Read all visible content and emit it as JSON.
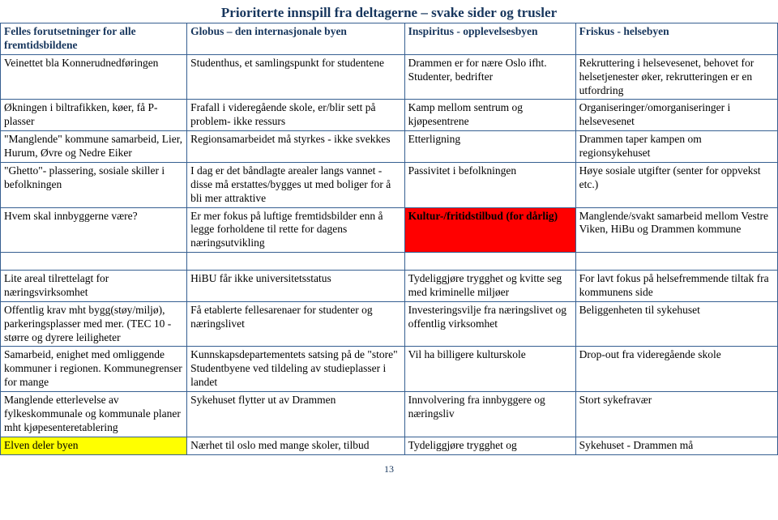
{
  "title": "Prioriterte innspill fra deltagerne – svake sider og trusler",
  "header": {
    "c1": "Felles forutsetninger for alle fremtidsbildene",
    "c2": "Globus – den internasjonale byen",
    "c3": "Inspiritus - opplevelsesbyen",
    "c4": "Friskus - helsebyen"
  },
  "rows": [
    {
      "c1": "Veinettet bla Konnerudnedføringen",
      "c2": "Studenthus, et samlingspunkt for studentene",
      "c3": "Drammen er for nære Oslo ifht. Studenter, bedrifter",
      "c4": "Rekruttering i helsevesenet, behovet for helsetjenester øker, rekrutteringen er en utfordring"
    },
    {
      "c1": "Økningen i biltrafikken, køer, få P-plasser",
      "c2": "Frafall i videregående skole, er/blir sett på problem- ikke ressurs",
      "c3": "Kamp mellom sentrum og kjøpesentrene",
      "c4": "Organiseringer/omorganiseringer i helsevesenet"
    },
    {
      "c1": "\"Manglende\" kommune samarbeid, Lier, Hurum, Øvre og Nedre Eiker",
      "c2": "Regionsamarbeidet må styrkes - ikke svekkes",
      "c3": "Etterligning",
      "c4": "Drammen taper kampen om regionsykehuset"
    },
    {
      "c1": "\"Ghetto\"- plassering, sosiale skiller i befolkningen",
      "c2": "I dag er det båndlagte arealer langs vannet - disse må erstattes/bygges ut med boliger for å bli mer attraktive",
      "c3": "Passivitet i befolkningen",
      "c4": "Høye sosiale utgifter (senter for oppvekst etc.)"
    },
    {
      "c1": "Hvem skal innbyggerne være?",
      "c2": "Er mer fokus på luftige fremtidsbilder enn å legge forholdene til rette for dagens næringsutvikling",
      "c3": "Kultur-/fritidstilbud (for dårlig)",
      "c3_red": true,
      "c4": "Manglende/svakt samarbeid mellom Vestre Viken, HiBu og Drammen kommune"
    }
  ],
  "spacer_present": true,
  "rows2": [
    {
      "c1": "Lite areal tilrettelagt for næringsvirksomhet",
      "c2": "HiBU får ikke universitetsstatus",
      "c3": "Tydeliggjøre trygghet og kvitte seg med kriminelle miljøer",
      "c4": "For lavt fokus på helsefremmende tiltak fra kommunens side"
    },
    {
      "c1": "Offentlig krav mht bygg(støy/miljø), parkeringsplasser med mer. (TEC 10 - større og dyrere leiligheter",
      "c2": "Få etablerte fellesarenaer for studenter og næringslivet",
      "c3": "Investeringsvilje fra næringslivet og offentlig virksomhet",
      "c4": "Beliggenheten til sykehuset"
    },
    {
      "c1": "Samarbeid, enighet med omliggende kommuner i regionen. Kommunegrenser for mange",
      "c2": "Kunnskapsdepartementets satsing på de \"store\" Studentbyene ved tildeling av studieplasser i landet",
      "c3": "Vil ha billigere kulturskole",
      "c4": "Drop-out fra videregående skole"
    },
    {
      "c1": "Manglende etterlevelse av fylkeskommunale og kommunale planer mht kjøpesenteretablering",
      "c2": "Sykehuset flytter ut av Drammen",
      "c3": "Innvolvering fra innbyggere og næringsliv",
      "c4": "Stort sykefravær"
    },
    {
      "c1": "Elven deler byen",
      "c1_yellow": true,
      "c2": "Nærhet til oslo med mange skoler, tilbud",
      "c3": "Tydeliggjøre trygghet og",
      "c4": "Sykehuset - Drammen må"
    }
  ],
  "page_number": "13",
  "colors": {
    "border": "#365f91",
    "header_text": "#17365d",
    "red_bg": "#ff0000",
    "yellow_bg": "#ffff00",
    "background": "#ffffff"
  },
  "typography": {
    "family": "Times New Roman",
    "body_pt": 13.5,
    "title_pt": 17
  }
}
